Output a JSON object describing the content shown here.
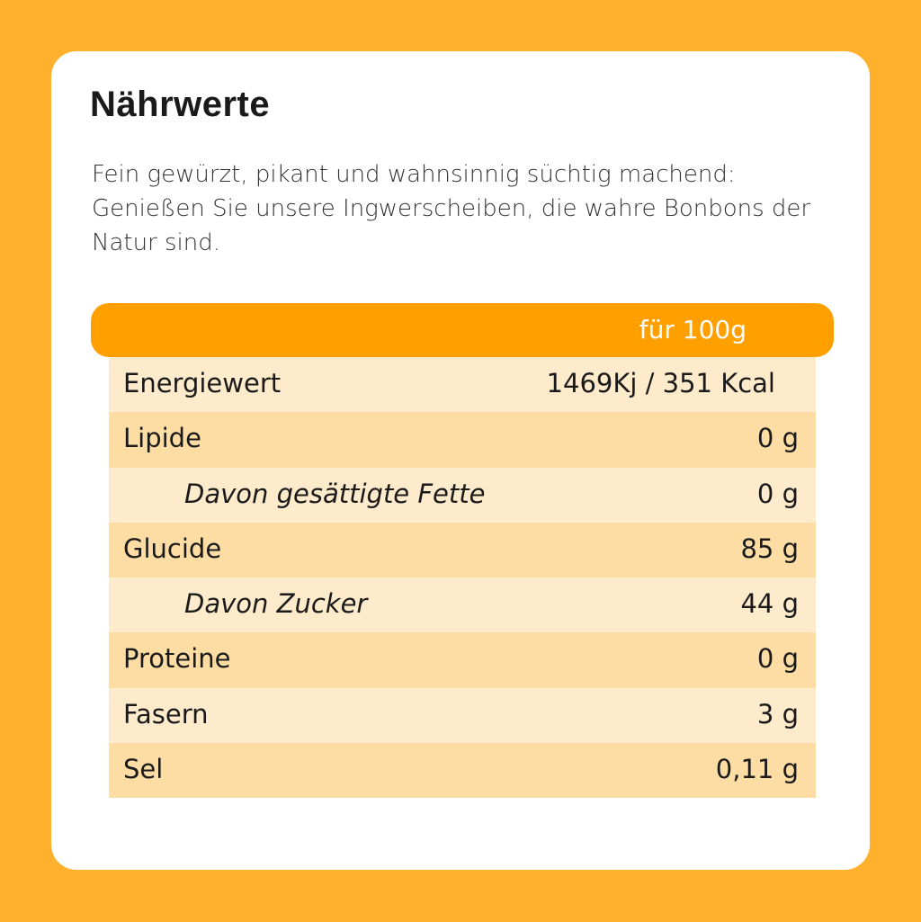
{
  "colors": {
    "background": "#FFB12E",
    "header": "#FFA000",
    "row_light": "#FEEBCB",
    "row_dark": "#FDDDA4"
  },
  "title": "Nährwerte",
  "description": "Fein gewürzt, pikant und wahnsinnig süchtig machend: Genießen Sie unsere Ingwerscheiben, die wahre Bonbons der Natur sind.",
  "table": {
    "header": "für 100g",
    "rows": [
      {
        "label": "Energiewert",
        "value": "1469Kj / 351 Kcal"
      },
      {
        "label": "Lipide",
        "value": "0 g"
      },
      {
        "label": "Davon gesättigte Fette",
        "value": "0 g"
      },
      {
        "label": "Glucide",
        "value": "85 g"
      },
      {
        "label": "Davon Zucker",
        "value": "44 g"
      },
      {
        "label": "Proteine",
        "value": "0 g"
      },
      {
        "label": "Fasern",
        "value": "3 g"
      },
      {
        "label": "Sel",
        "value": "0,11 g"
      }
    ]
  }
}
